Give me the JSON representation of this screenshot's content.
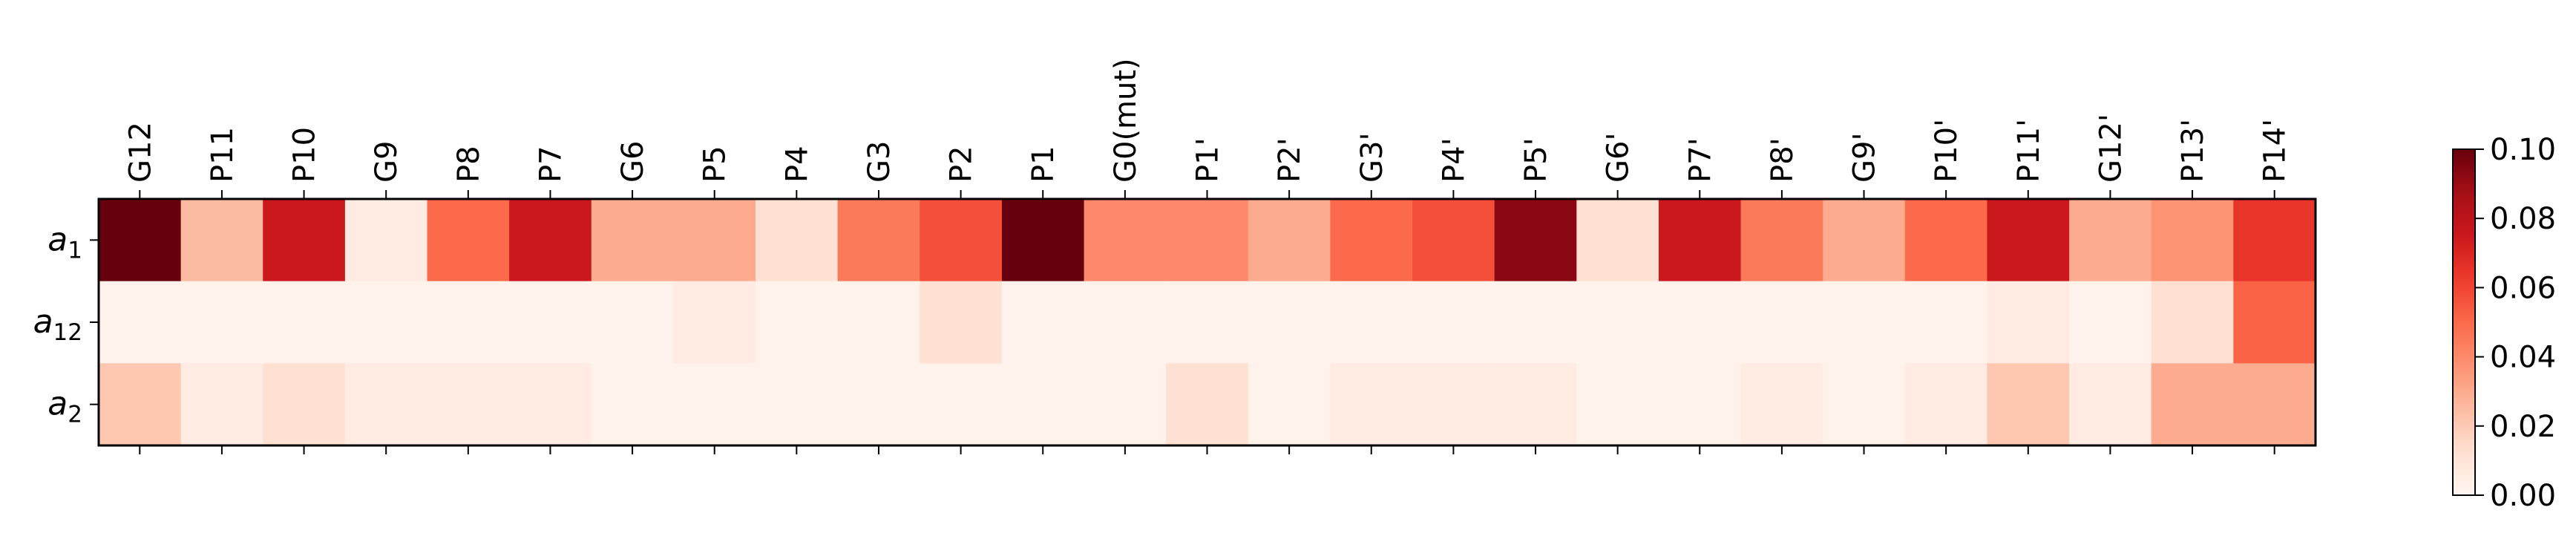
{
  "chart_data": {
    "type": "heatmap",
    "x_categories": [
      "G12",
      "P11",
      "P10",
      "G9",
      "P8",
      "P7",
      "G6",
      "P5",
      "P4",
      "G3",
      "P2",
      "P1",
      "G0(mut)",
      "P1'",
      "P2'",
      "G3'",
      "P4'",
      "P5'",
      "G6'",
      "P7'",
      "P8'",
      "G9'",
      "P10'",
      "P11'",
      "G12'",
      "P13'",
      "P14'"
    ],
    "y_categories": [
      {
        "base": "a",
        "sub": "1"
      },
      {
        "base": "a",
        "sub": "12"
      },
      {
        "base": "a",
        "sub": "2"
      }
    ],
    "values": [
      [
        0.1,
        0.025,
        0.075,
        0.006,
        0.05,
        0.075,
        0.03,
        0.03,
        0.012,
        0.045,
        0.057,
        0.1,
        0.04,
        0.04,
        0.03,
        0.05,
        0.057,
        0.093,
        0.012,
        0.075,
        0.045,
        0.03,
        0.05,
        0.075,
        0.03,
        0.037,
        0.065
      ],
      [
        0.002,
        0.002,
        0.002,
        0.002,
        0.002,
        0.002,
        0.002,
        0.006,
        0.002,
        0.002,
        0.012,
        0.002,
        0.002,
        0.002,
        0.002,
        0.002,
        0.002,
        0.002,
        0.002,
        0.002,
        0.002,
        0.002,
        0.002,
        0.006,
        0.002,
        0.012,
        0.052
      ],
      [
        0.021,
        0.006,
        0.012,
        0.006,
        0.006,
        0.006,
        0.002,
        0.002,
        0.002,
        0.002,
        0.002,
        0.002,
        0.002,
        0.012,
        0.002,
        0.006,
        0.006,
        0.006,
        0.002,
        0.002,
        0.006,
        0.002,
        0.006,
        0.021,
        0.006,
        0.03,
        0.03
      ]
    ],
    "colormap": "Reds",
    "vmin": 0.0,
    "vmax": 0.1,
    "colorbar_ticks": [
      "0.00",
      "0.02",
      "0.04",
      "0.06",
      "0.08",
      "0.10"
    ],
    "x_tick_position": "top",
    "grid": false
  }
}
